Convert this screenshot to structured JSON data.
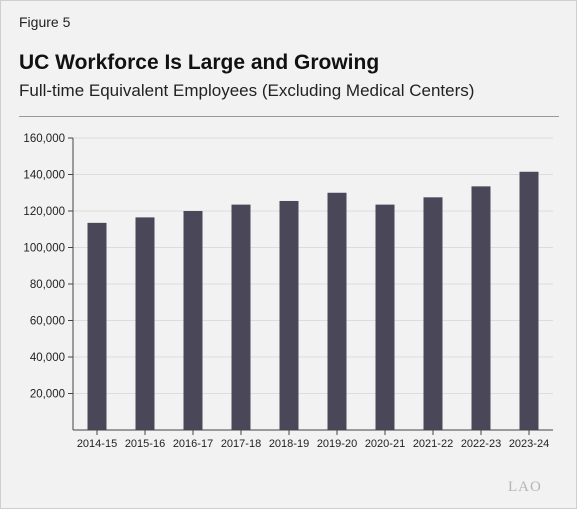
{
  "figure_label": "Figure 5",
  "logo_text": "LAO",
  "chart_data": {
    "type": "bar",
    "title": "UC Workforce Is Large and Growing",
    "subtitle": "Full-time Equivalent Employees (Excluding Medical Centers)",
    "xlabel": "",
    "ylabel": "",
    "categories": [
      "2014-15",
      "2015-16",
      "2016-17",
      "2017-18",
      "2018-19",
      "2019-20",
      "2020-21",
      "2021-22",
      "2022-23",
      "2023-24"
    ],
    "values": [
      113500,
      116500,
      120000,
      123500,
      125500,
      130000,
      123500,
      127500,
      133500,
      141500
    ],
    "ylim": [
      0,
      160000
    ],
    "yticks": [
      20000,
      40000,
      60000,
      80000,
      100000,
      120000,
      140000,
      160000
    ],
    "ytick_labels": [
      "20,000",
      "40,000",
      "60,000",
      "80,000",
      "100,000",
      "120,000",
      "140,000",
      "160,000"
    ],
    "grid": true,
    "legend": "none",
    "colors": {
      "bar": "#4a4858",
      "grid": "#dcdcdc",
      "axis": "#444444",
      "background": "#f2f2f2"
    }
  }
}
